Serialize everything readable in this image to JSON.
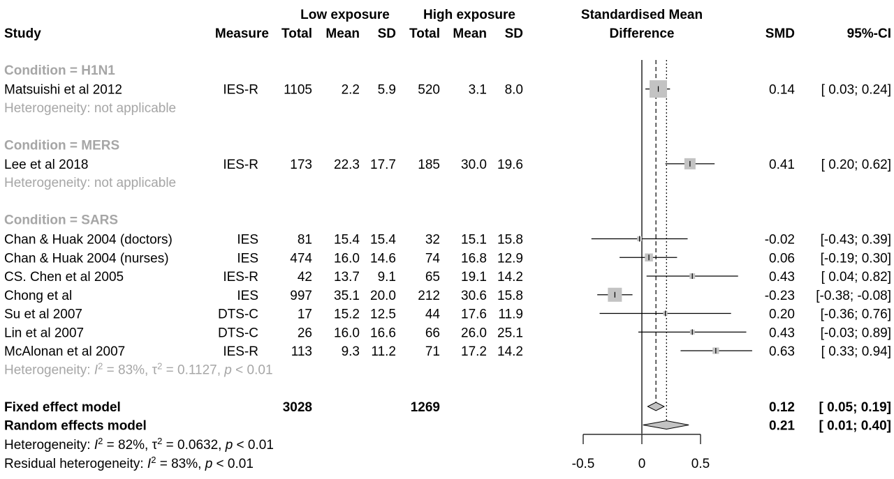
{
  "chart_data": {
    "type": "forest",
    "header": {
      "study": "Study",
      "measure": "Measure",
      "low_exposure": "Low exposure",
      "high_exposure": "High exposure",
      "total": "Total",
      "mean": "Mean",
      "sd": "SD",
      "smd_title_line1": "Standardised Mean",
      "smd_title_line2": "Difference",
      "smd": "SMD",
      "ci": "95%-CI"
    },
    "axis": {
      "xlim": [
        -0.5,
        0.5
      ],
      "ticks": [
        "-0.5",
        "0",
        "0.5"
      ],
      "tick_values": [
        -0.5,
        0,
        0.5
      ]
    },
    "groups": [
      {
        "label": "Condition = H1N1",
        "heterogeneity": "Heterogeneity: not applicable",
        "studies": [
          {
            "name": "Matsuishi et al 2012",
            "measure": "IES-R",
            "low_total": "1105",
            "low_mean": "2.2",
            "low_sd": "5.9",
            "high_total": "520",
            "high_mean": "3.1",
            "high_sd": "8.0",
            "smd": 0.14,
            "lo": 0.03,
            "hi": 0.24,
            "smd_text": "0.14",
            "ci_text": "[ 0.03;  0.24]",
            "weight": 1.0
          }
        ]
      },
      {
        "label": "Condition = MERS",
        "heterogeneity": "Heterogeneity: not applicable",
        "studies": [
          {
            "name": "Lee et al 2018",
            "measure": "IES-R",
            "low_total": "173",
            "low_mean": "22.3",
            "low_sd": "17.7",
            "high_total": "185",
            "high_mean": "30.0",
            "high_sd": "19.6",
            "smd": 0.41,
            "lo": 0.2,
            "hi": 0.62,
            "smd_text": "0.41",
            "ci_text": "[ 0.20;  0.62]",
            "weight": 0.35
          }
        ]
      },
      {
        "label": "Condition = SARS",
        "heterogeneity": {
          "prefix": "Heterogeneity: ",
          "i2": " = 83%, ",
          "tau2": " = 0.1127, ",
          "p": " < 0.01"
        },
        "studies": [
          {
            "name": "Chan & Huak 2004 (doctors)",
            "measure": "IES",
            "low_total": "81",
            "low_mean": "15.4",
            "low_sd": "15.4",
            "high_total": "32",
            "high_mean": "15.1",
            "high_sd": "15.8",
            "smd": -0.02,
            "lo": -0.43,
            "hi": 0.39,
            "smd_text": "-0.02",
            "ci_text": "[-0.43;  0.39]",
            "weight": 0.03
          },
          {
            "name": "Chan & Huak 2004 (nurses)",
            "measure": "IES",
            "low_total": "474",
            "low_mean": "16.0",
            "low_sd": "14.6",
            "high_total": "74",
            "high_mean": "16.8",
            "high_sd": "12.9",
            "smd": 0.06,
            "lo": -0.19,
            "hi": 0.3,
            "smd_text": "0.06",
            "ci_text": "[-0.19;  0.30]",
            "weight": 0.15
          },
          {
            "name": "CS. Chen et al 2005",
            "measure": "IES-R",
            "low_total": "42",
            "low_mean": "13.7",
            "low_sd": "9.1",
            "high_total": "65",
            "high_mean": "19.1",
            "high_sd": "14.2",
            "smd": 0.43,
            "lo": 0.04,
            "hi": 0.82,
            "smd_text": "0.43",
            "ci_text": "[ 0.04;  0.82]",
            "weight": 0.05
          },
          {
            "name": "Chong et al",
            "measure": "IES",
            "low_total": "997",
            "low_mean": "35.1",
            "low_sd": "20.0",
            "high_total": "212",
            "high_mean": "30.6",
            "high_sd": "15.8",
            "smd": -0.23,
            "lo": -0.38,
            "hi": -0.08,
            "smd_text": "-0.23",
            "ci_text": "[-0.38; -0.08]",
            "weight": 0.6
          },
          {
            "name": "Su et al 2007",
            "measure": "DTS-C",
            "low_total": "17",
            "low_mean": "15.2",
            "low_sd": "12.5",
            "high_total": "44",
            "high_mean": "17.6",
            "high_sd": "11.9",
            "smd": 0.2,
            "lo": -0.36,
            "hi": 0.76,
            "smd_text": "0.20",
            "ci_text": "[-0.36;  0.76]",
            "weight": 0.02
          },
          {
            "name": "Lin et al 2007",
            "measure": "DTS-C",
            "low_total": "26",
            "low_mean": "16.0",
            "low_sd": "16.6",
            "high_total": "66",
            "high_mean": "26.0",
            "high_sd": "25.1",
            "smd": 0.43,
            "lo": -0.03,
            "hi": 0.89,
            "smd_text": "0.43",
            "ci_text": "[-0.03;  0.89]",
            "weight": 0.03
          },
          {
            "name": "McAlonan et al 2007",
            "measure": "IES-R",
            "low_total": "113",
            "low_mean": "9.3",
            "low_sd": "11.2",
            "high_total": "71",
            "high_mean": "17.2",
            "high_sd": "14.2",
            "smd": 0.63,
            "lo": 0.33,
            "hi": 0.94,
            "smd_text": "0.63",
            "ci_text": "[ 0.33;  0.94]",
            "weight": 0.08
          }
        ]
      }
    ],
    "fixed": {
      "label": "Fixed effect model",
      "low_total": "3028",
      "high_total": "1269",
      "smd": 0.12,
      "lo": 0.05,
      "hi": 0.19,
      "smd_text": "0.12",
      "ci_text": "[ 0.05;  0.19]"
    },
    "random": {
      "label": "Random effects model",
      "smd": 0.21,
      "lo": 0.01,
      "hi": 0.4,
      "smd_text": "0.21",
      "ci_text": "[ 0.01;  0.40]"
    },
    "footer": {
      "heterogeneity": {
        "prefix": "Heterogeneity: ",
        "i2": " = 82%, ",
        "tau2": " = 0.0632, ",
        "p": " < 0.01"
      },
      "residual": {
        "prefix": "Residual heterogeneity: ",
        "i2": " = 83%, ",
        "p": " < 0.01"
      }
    }
  }
}
